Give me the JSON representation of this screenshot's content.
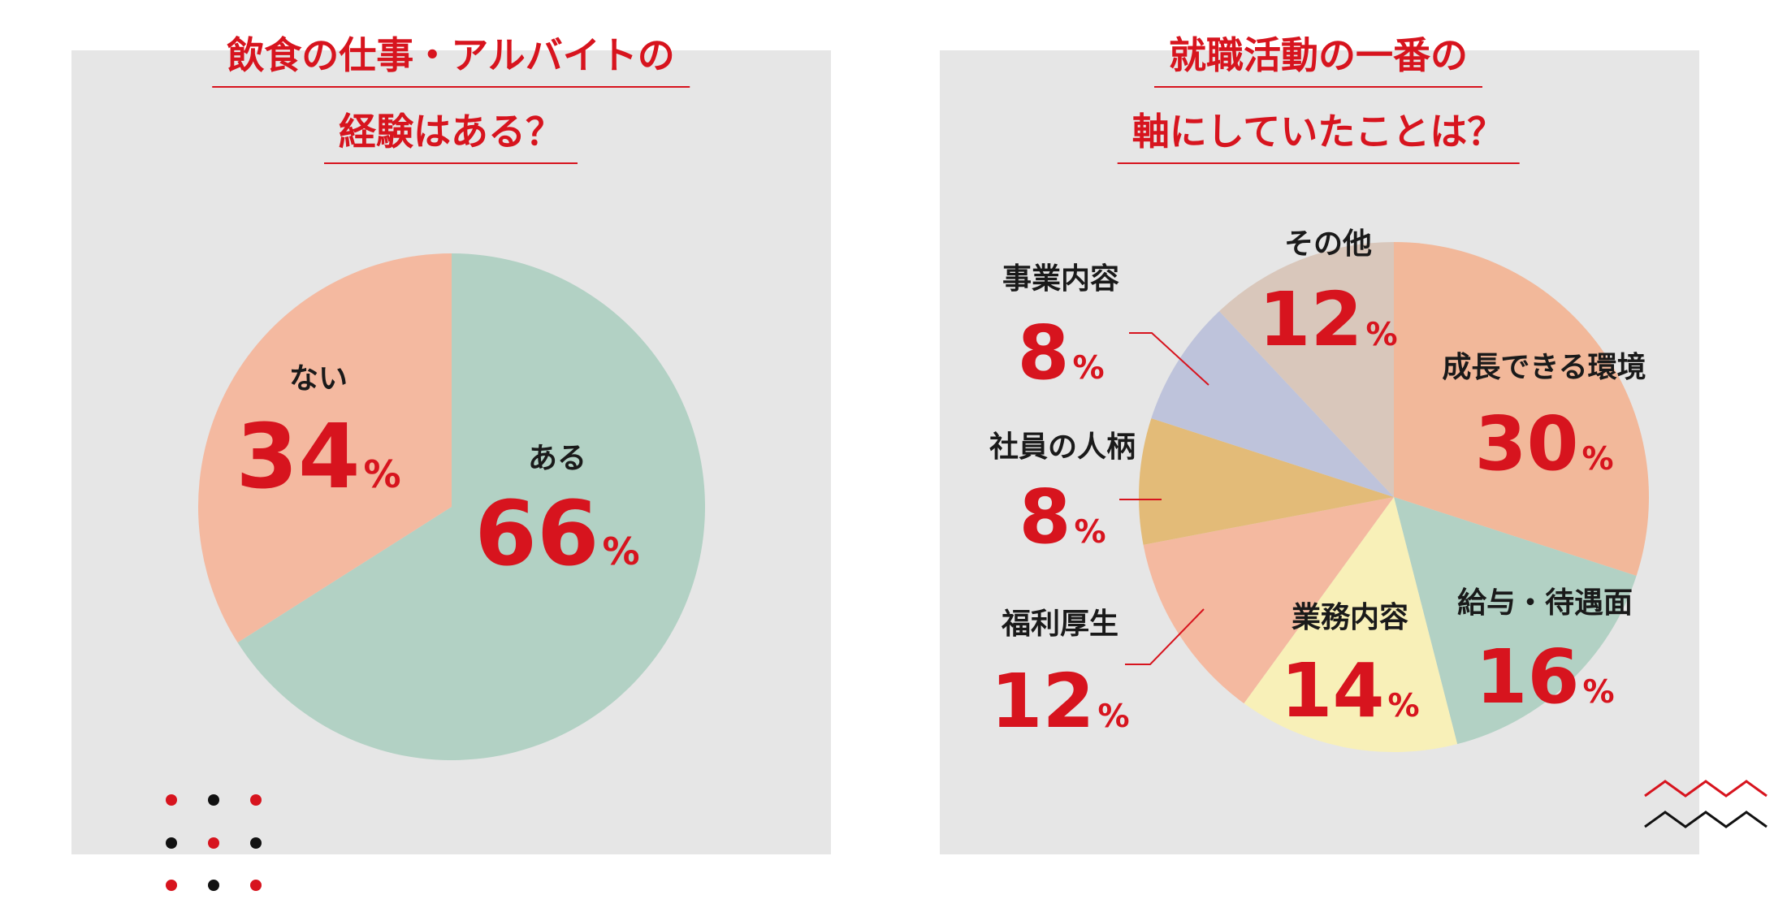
{
  "colors": {
    "accent": "#d7141e",
    "text": "#1a1a1a",
    "panel": "#e6e6e6"
  },
  "chart_data": [
    {
      "type": "pie",
      "title": [
        "飲食の仕事・アルバイトの",
        "経験はある？"
      ],
      "unit": "%",
      "slices": [
        {
          "label": "ある",
          "value": 66,
          "color": "#b2d1c4"
        },
        {
          "label": "ない",
          "value": 34,
          "color": "#f4b9a0"
        }
      ]
    },
    {
      "type": "pie",
      "title": [
        "就職活動の一番の",
        "軸にしていたことは？"
      ],
      "unit": "%",
      "slices": [
        {
          "label": "成長できる環境",
          "value": 30,
          "color": "#f2b89a"
        },
        {
          "label": "給与・待遇面",
          "value": 16,
          "color": "#b2d1c4"
        },
        {
          "label": "業務内容",
          "value": 14,
          "color": "#f8f0b8"
        },
        {
          "label": "福利厚生",
          "value": 12,
          "color": "#f4b9a0"
        },
        {
          "label": "社員の人柄",
          "value": 8,
          "color": "#e3bb78"
        },
        {
          "label": "事業内容",
          "value": 8,
          "color": "#bec3db"
        },
        {
          "label": "その他",
          "value": 12,
          "color": "#d9c7bb"
        }
      ]
    }
  ]
}
